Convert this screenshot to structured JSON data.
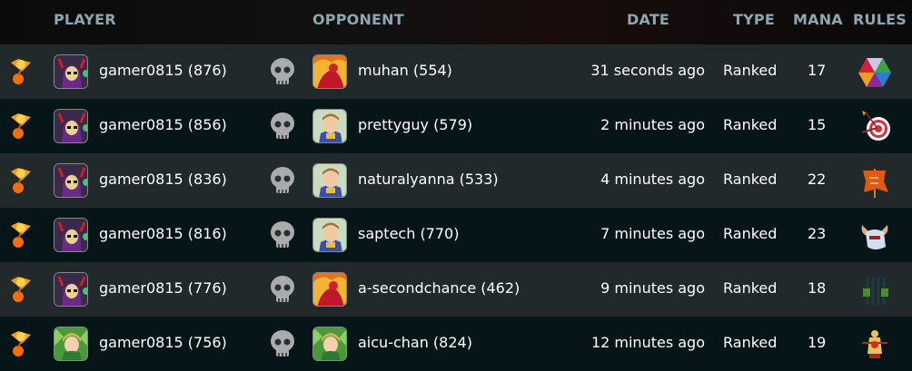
{
  "header": {
    "player": "PLAYER",
    "opponent": "OPPONENT",
    "date": "DATE",
    "type": "TYPE",
    "mana": "MANA",
    "rules": "RULES"
  },
  "colors": {
    "header_text": "#8ba7b2",
    "row_light": "#22292b",
    "row_dark": "#061618"
  },
  "rows": [
    {
      "result_icon": "trophy-icon",
      "player": "gamer0815 (876)",
      "player_avatar": "dark-summoner",
      "opponent": "muhan (554)",
      "opponent_avatar": "fire-summoner",
      "date": "31 seconds ago",
      "type": "Ranked",
      "mana": "17",
      "rule_icon": "rainbow-gems-icon"
    },
    {
      "result_icon": "trophy-icon",
      "player": "gamer0815 (856)",
      "player_avatar": "dark-summoner",
      "opponent": "prettyguy (579)",
      "opponent_avatar": "life-summoner",
      "date": "2 minutes ago",
      "type": "Ranked",
      "mana": "15",
      "rule_icon": "target-icon"
    },
    {
      "result_icon": "trophy-icon",
      "player": "gamer0815 (836)",
      "player_avatar": "dark-summoner",
      "opponent": "naturalyanna (533)",
      "opponent_avatar": "life-summoner",
      "date": "4 minutes ago",
      "type": "Ranked",
      "mana": "22",
      "rule_icon": "flag-icon"
    },
    {
      "result_icon": "trophy-icon",
      "player": "gamer0815 (816)",
      "player_avatar": "dark-summoner",
      "opponent": "saptech (770)",
      "opponent_avatar": "life-summoner",
      "date": "7 minutes ago",
      "type": "Ranked",
      "mana": "23",
      "rule_icon": "horned-helmet-icon"
    },
    {
      "result_icon": "trophy-icon",
      "player": "gamer0815 (776)",
      "player_avatar": "dark-summoner",
      "opponent": "a-secondchance (462)",
      "opponent_avatar": "fire-summoner",
      "date": "9 minutes ago",
      "type": "Ranked",
      "mana": "18",
      "rule_icon": "cage-icon"
    },
    {
      "result_icon": "trophy-icon",
      "player": "gamer0815 (756)",
      "player_avatar": "earth-summoner",
      "opponent": "aicu-chan (824)",
      "opponent_avatar": "earth-summoner",
      "date": "12 minutes ago",
      "type": "Ranked",
      "mana": "19",
      "rule_icon": "training-dummy-icon"
    }
  ]
}
